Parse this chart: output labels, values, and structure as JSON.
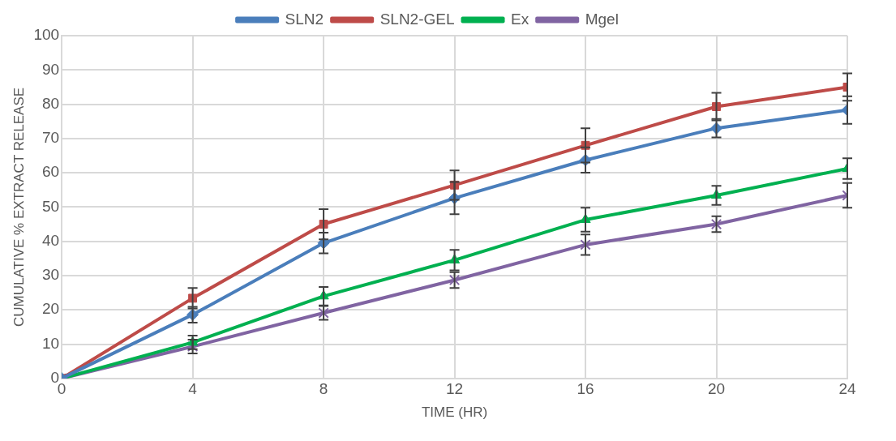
{
  "chart_data": {
    "type": "line",
    "xlabel": "TIME (HR)",
    "ylabel": "CUMULATIVE % EXTRACT RELEASE",
    "x": [
      0,
      4,
      8,
      12,
      16,
      20,
      24
    ],
    "xlim": [
      0,
      24
    ],
    "xticks": [
      0,
      4,
      8,
      12,
      16,
      20,
      24
    ],
    "ylim": [
      0,
      100
    ],
    "yticks": [
      0,
      10,
      20,
      30,
      40,
      50,
      60,
      70,
      80,
      90,
      100
    ],
    "grid": true,
    "legend": "top",
    "line_style": "solid",
    "series": [
      {
        "name": "SLN2",
        "color": "#4a7ebb",
        "marker": "diamond",
        "values": [
          0,
          18.6,
          39.5,
          52.6,
          63.7,
          73,
          78.3
        ],
        "errors": [
          null,
          2.3,
          3,
          4.7,
          3.7,
          2.7,
          4
        ]
      },
      {
        "name": "SLN2-GEL",
        "color": "#be4b48",
        "marker": "square",
        "values": [
          0,
          23.4,
          45,
          56.4,
          68,
          79.3,
          85
        ],
        "errors": [
          null,
          3,
          4.4,
          4.3,
          5,
          4,
          4
        ]
      },
      {
        "name": "Ex",
        "color": "#00b050",
        "marker": "triangle",
        "values": [
          0,
          10.5,
          24,
          34.5,
          46.3,
          53.4,
          61.2
        ],
        "errors": [
          null,
          2,
          2.7,
          3,
          3.5,
          2.8,
          3
        ]
      },
      {
        "name": "Mgel",
        "color": "#8064a2",
        "marker": "cross",
        "values": [
          0,
          9.3,
          19.1,
          28.7,
          39,
          45,
          53.4
        ],
        "errors": [
          null,
          2,
          2,
          2.3,
          3,
          2.3,
          3.6
        ]
      }
    ]
  }
}
